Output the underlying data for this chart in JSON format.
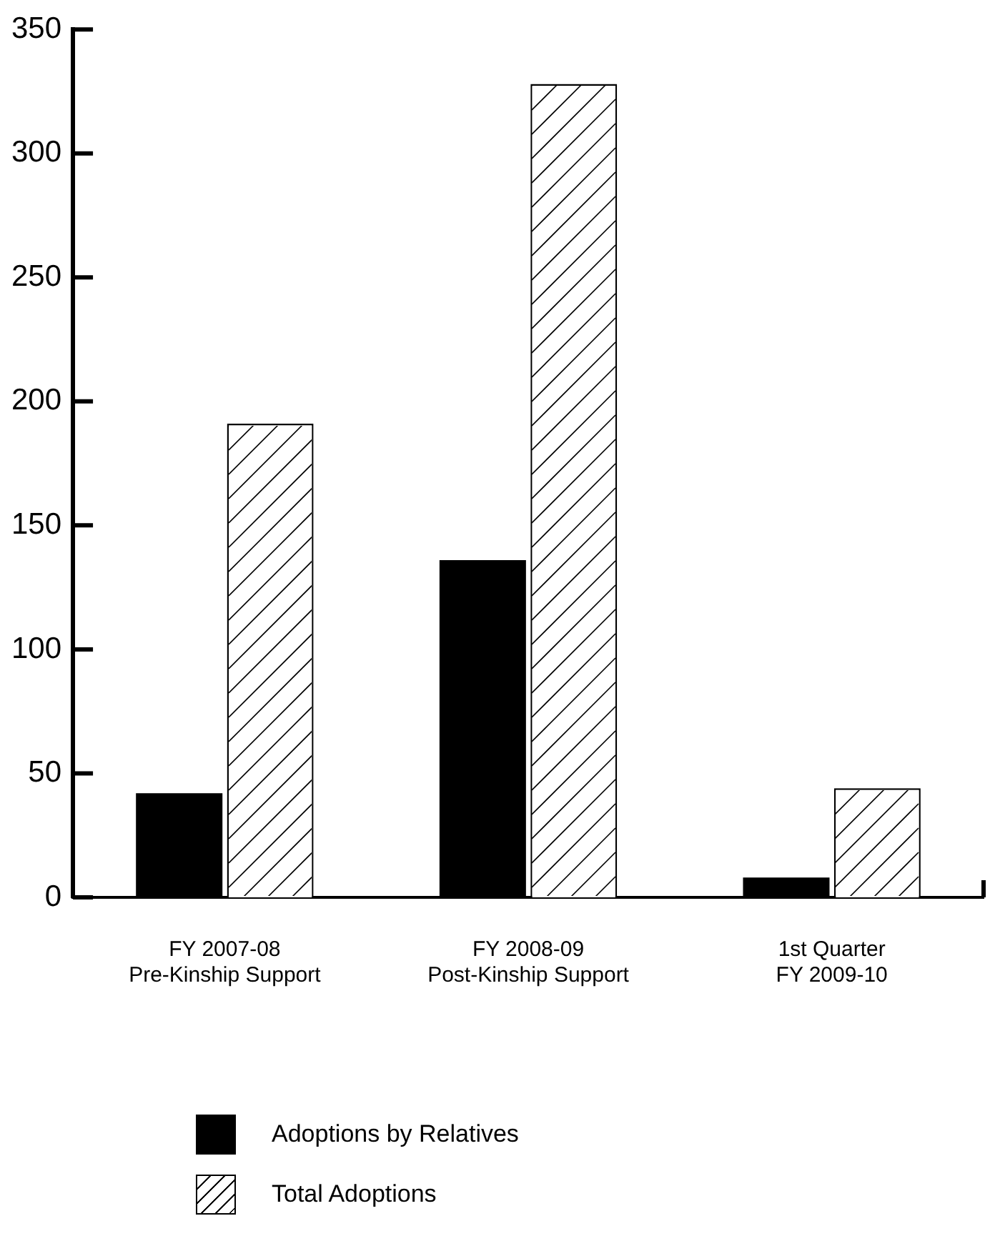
{
  "chart_data": {
    "type": "bar",
    "categories": [
      "FY 2007-08\nPre-Kinship Support",
      "FY 2008-09\nPost-Kinship Support",
      "1st Quarter\nFY 2009-10"
    ],
    "series": [
      {
        "name": "Adoptions by Relatives",
        "color": "#000000",
        "values": [
          42,
          136,
          8
        ]
      },
      {
        "name": "Total Adoptions",
        "color": "#ffffff",
        "values": [
          191,
          328,
          44
        ]
      }
    ],
    "ylim": [
      0,
      350
    ],
    "yticks": [
      0,
      50,
      100,
      150,
      200,
      250,
      300,
      350
    ],
    "grid": false,
    "legend": "bottom"
  }
}
